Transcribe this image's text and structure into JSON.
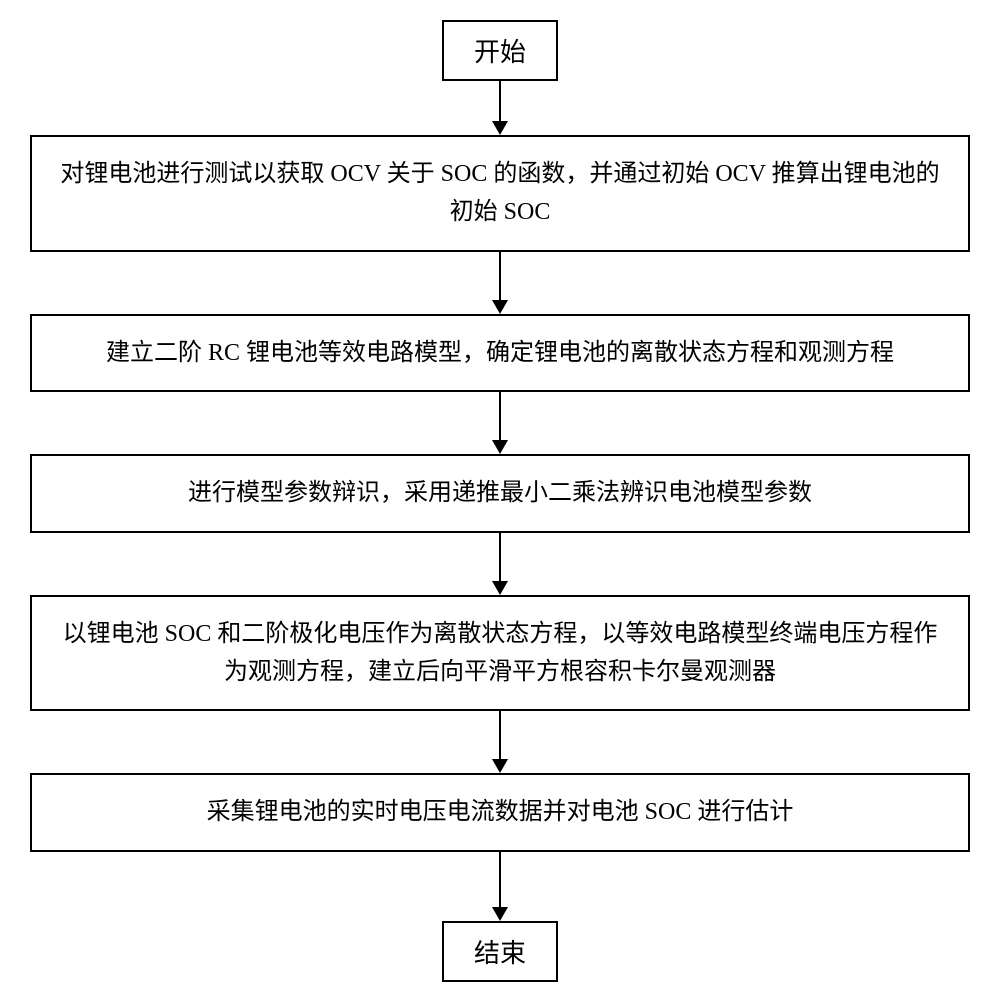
{
  "flowchart": {
    "type": "flowchart",
    "background_color": "#ffffff",
    "border_color": "#000000",
    "border_width": 2,
    "text_color": "#000000",
    "font_family": "SimSun",
    "terminal_fontsize": 26,
    "process_fontsize": 24,
    "process_width": 940,
    "arrow_color": "#000000",
    "nodes": {
      "start": {
        "type": "terminal",
        "label": "开始"
      },
      "step1": {
        "type": "process",
        "label": "对锂电池进行测试以获取 OCV 关于 SOC 的函数，并通过初始 OCV 推算出锂电池的初始 SOC"
      },
      "step2": {
        "type": "process",
        "label": "建立二阶 RC 锂电池等效电路模型，确定锂电池的离散状态方程和观测方程"
      },
      "step3": {
        "type": "process",
        "label": "进行模型参数辩识，采用递推最小二乘法辨识电池模型参数"
      },
      "step4": {
        "type": "process",
        "label": "以锂电池 SOC 和二阶极化电压作为离散状态方程，以等效电路模型终端电压方程作为观测方程，建立后向平滑平方根容积卡尔曼观测器"
      },
      "step5": {
        "type": "process",
        "label": "采集锂电池的实时电压电流数据并对电池 SOC 进行估计"
      },
      "end": {
        "type": "terminal",
        "label": "结束"
      }
    },
    "edges": [
      {
        "from": "start",
        "to": "step1",
        "length": 40
      },
      {
        "from": "step1",
        "to": "step2",
        "length": 48
      },
      {
        "from": "step2",
        "to": "step3",
        "length": 48
      },
      {
        "from": "step3",
        "to": "step4",
        "length": 48
      },
      {
        "from": "step4",
        "to": "step5",
        "length": 48
      },
      {
        "from": "step5",
        "to": "end",
        "length": 55
      }
    ]
  }
}
